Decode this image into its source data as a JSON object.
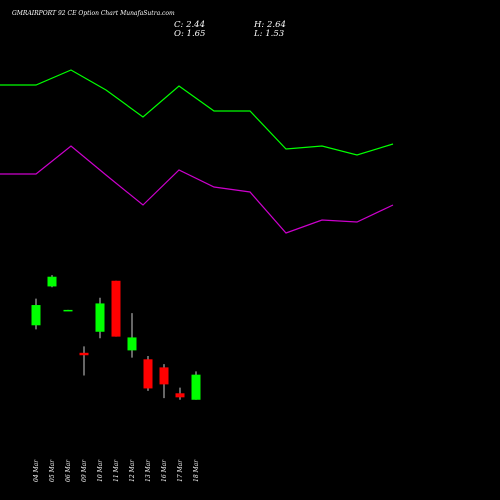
{
  "header": {
    "title": "GMRAIRPORT 92  CE Option  Chart MunafaSutra.com",
    "close": "C: 2.44",
    "open": "O: 1.65",
    "high": "H: 2.64",
    "low": "L: 1.53"
  },
  "colors": {
    "background": "#000000",
    "upper_line": "#00ff00",
    "lower_line": "#cc00cc",
    "bull": "#00ff00",
    "bear": "#ff0000",
    "wick": "#ffffff"
  },
  "chart_data": {
    "type": "candlestick",
    "dates": [
      "04 Mar",
      "05 Mar",
      "06 Mar",
      "09 Mar",
      "10 Mar",
      "11 Mar",
      "12 Mar",
      "13 Mar",
      "16 Mar",
      "17 Mar",
      "18 Mar"
    ],
    "candles": [
      {
        "open": 1.97,
        "close": 2.22,
        "high": 2.3,
        "low": 1.92,
        "dir": "up"
      },
      {
        "open": 2.45,
        "close": 2.57,
        "high": 2.59,
        "low": 2.44,
        "dir": "up"
      },
      {
        "open": 2.16,
        "close": 2.15,
        "high": 2.16,
        "low": 2.15,
        "dir": "flat"
      },
      {
        "open": 1.63,
        "close": 1.6,
        "high": 1.71,
        "low": 1.35,
        "dir": "down"
      },
      {
        "open": 1.89,
        "close": 2.24,
        "high": 2.31,
        "low": 1.81,
        "dir": "up"
      },
      {
        "open": 2.52,
        "close": 1.83,
        "high": 2.52,
        "low": 1.83,
        "dir": "down"
      },
      {
        "open": 1.66,
        "close": 1.82,
        "high": 2.12,
        "low": 1.57,
        "dir": "up"
      },
      {
        "open": 1.55,
        "close": 1.19,
        "high": 1.59,
        "low": 1.16,
        "dir": "down"
      },
      {
        "open": 1.45,
        "close": 1.24,
        "high": 1.49,
        "low": 1.07,
        "dir": "down"
      },
      {
        "open": 1.13,
        "close": 1.08,
        "high": 1.2,
        "low": 1.05,
        "dir": "down"
      },
      {
        "open": 1.05,
        "close": 1.36,
        "high": 1.4,
        "low": 1.05,
        "dir": "up"
      }
    ],
    "upper_line": [
      85,
      85,
      70,
      90,
      117,
      86,
      111,
      111,
      149,
      146,
      155,
      144
    ],
    "lower_line": [
      174,
      174,
      146,
      175,
      205,
      170,
      187,
      192,
      233,
      220,
      222,
      205
    ],
    "ylim": [
      0.8,
      2.9
    ]
  }
}
